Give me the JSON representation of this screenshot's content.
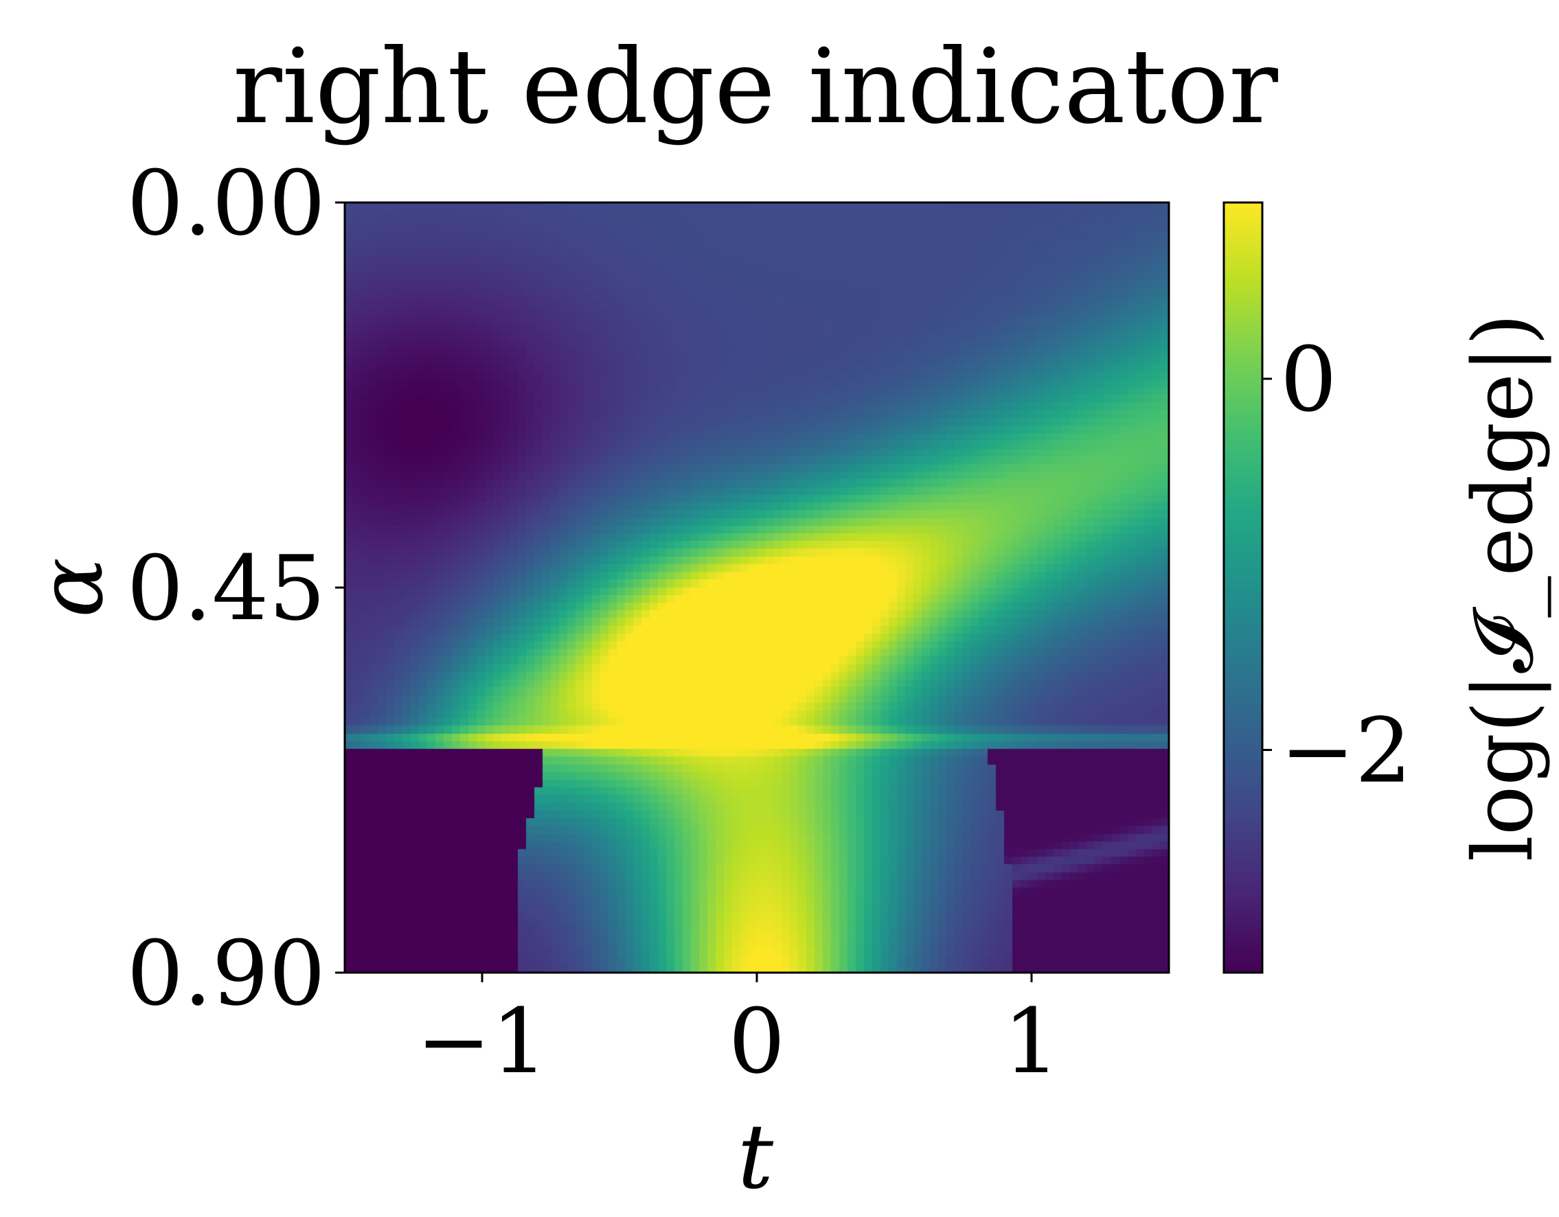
{
  "chart_data": {
    "type": "heatmap",
    "title": "right edge indicator",
    "xlabel": "t",
    "ylabel": "α",
    "colorbar_label": "log(|𝓘_edge|)",
    "colormap": "viridis",
    "xlim": [
      -1.5,
      1.5
    ],
    "ylim": [
      0.0,
      0.9
    ],
    "y_inverted": true,
    "x_ticks": [
      {
        "value": -1,
        "label": "−1"
      },
      {
        "value": 0,
        "label": "0"
      },
      {
        "value": 1,
        "label": "1"
      }
    ],
    "y_ticks": [
      {
        "value": 0.0,
        "label": "0.00"
      },
      {
        "value": 0.45,
        "label": "0.45"
      },
      {
        "value": 0.9,
        "label": "0.90"
      }
    ],
    "colorbar": {
      "min": -3.2,
      "max": 0.95,
      "ticks": [
        {
          "value": 0,
          "label": "0"
        },
        {
          "value": -2,
          "label": "−2"
        }
      ]
    },
    "grid": false,
    "field_description_values": {
      "background_top": -2.3,
      "dark_regions": -3.2,
      "ridge_peak": 0.95
    }
  }
}
